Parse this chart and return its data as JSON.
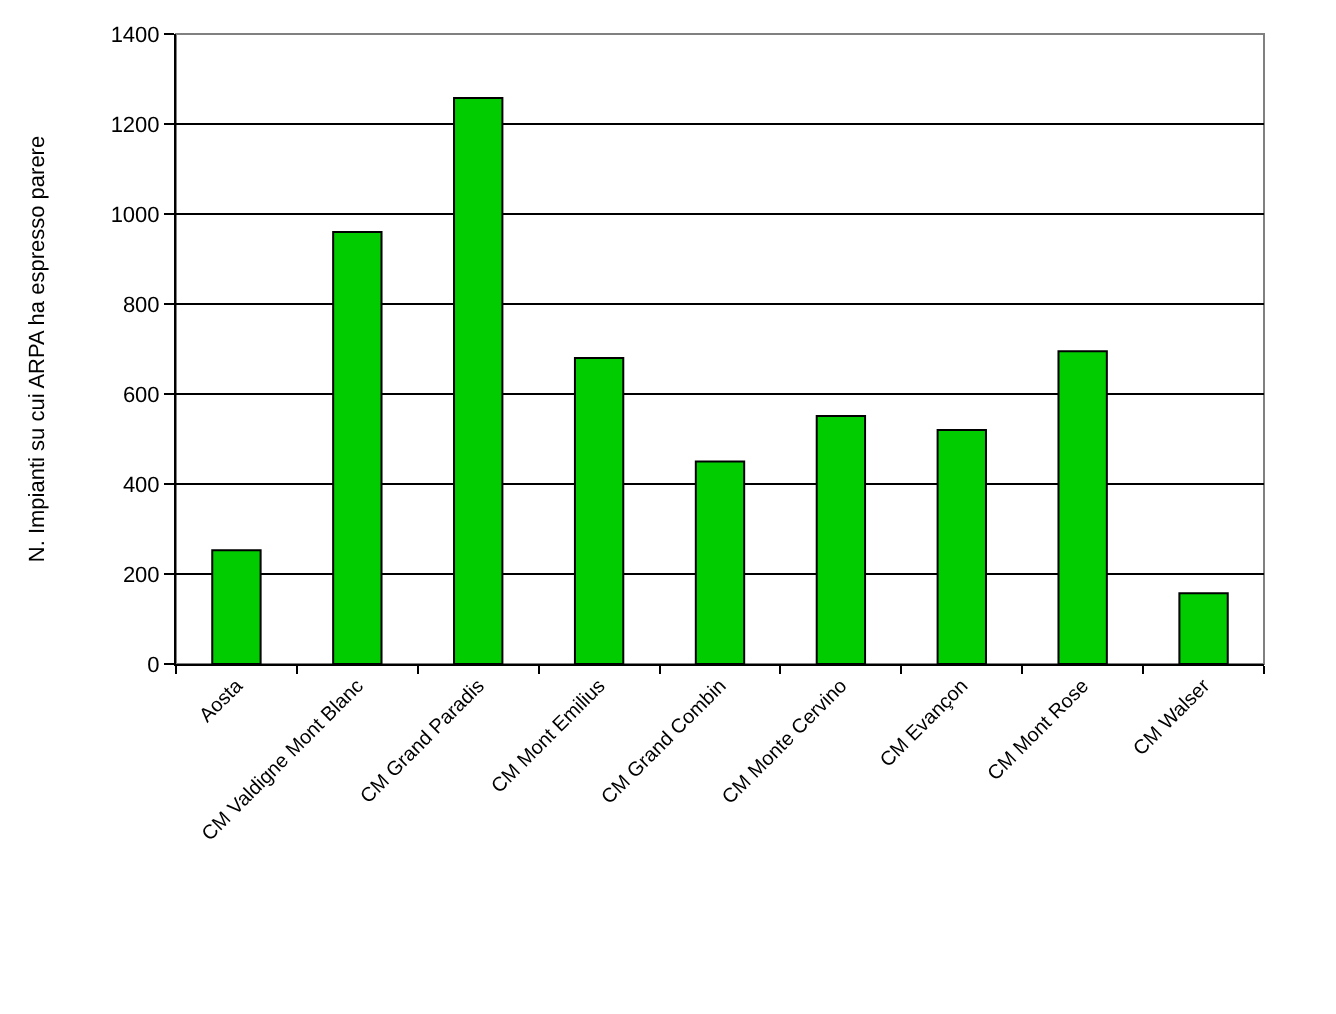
{
  "chart_data": {
    "type": "bar",
    "ylabel": "N. Impianti su cui ARPA ha espresso parere",
    "categories": [
      "Aosta",
      "CM Valdigne Mont Blanc",
      "CM Grand Paradis",
      "CM Mont Emilius",
      "CM Grand Combin",
      "CM Monte Cervino",
      "CM Evançon",
      "CM Mont Rose",
      "CM Walser"
    ],
    "values": [
      253,
      960,
      1258,
      680,
      450,
      551,
      520,
      695,
      157
    ],
    "color": "#00cc00",
    "ylim": [
      0,
      1400
    ],
    "yticks": [
      0,
      200,
      400,
      600,
      800,
      1000,
      1200,
      1400
    ],
    "grid": "y"
  }
}
